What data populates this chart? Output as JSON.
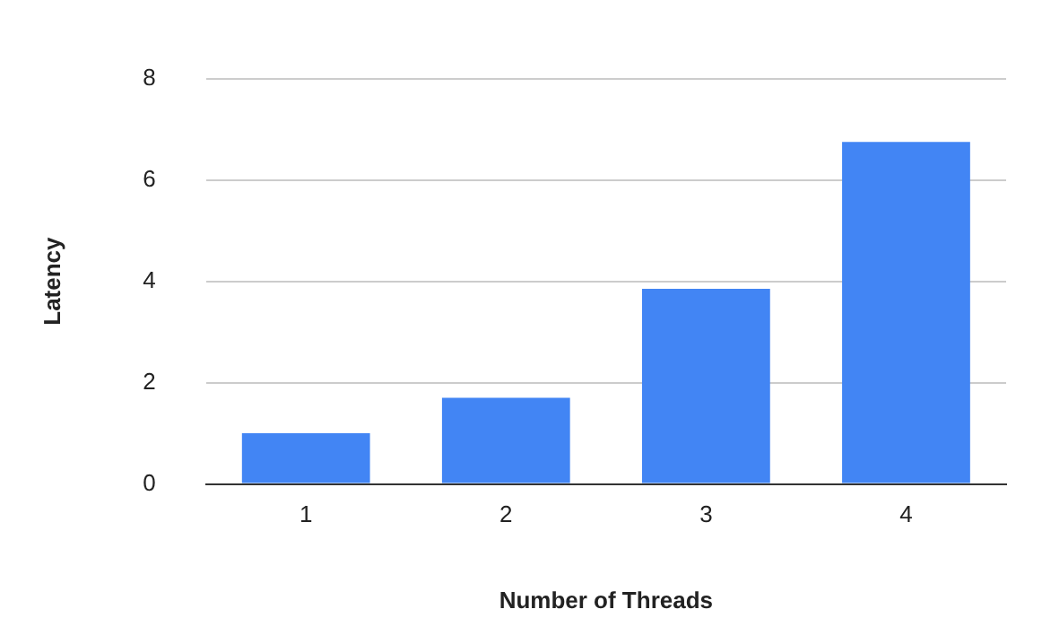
{
  "chart_data": {
    "type": "bar",
    "xlabel": "Number of Threads",
    "ylabel": "Latency",
    "categories": [
      "1",
      "2",
      "3",
      "4"
    ],
    "values": [
      1.0,
      1.7,
      3.85,
      6.75
    ],
    "color": "#4285f4",
    "ylim": [
      0,
      8
    ],
    "yticks": [
      0,
      2,
      4,
      6,
      8
    ],
    "grid": "y"
  }
}
